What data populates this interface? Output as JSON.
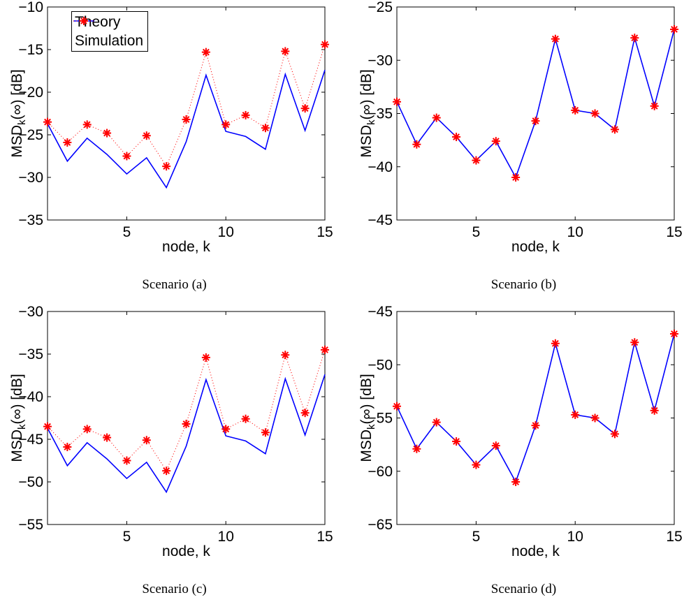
{
  "chart_data": [
    {
      "type": "line",
      "caption": "Scenario (a)",
      "xlabel": "node, k",
      "ylabel": "MSD_k(∞) [dB]",
      "xlim": [
        1,
        15
      ],
      "ylim": [
        -35,
        -10
      ],
      "xticks": [
        5,
        10,
        15
      ],
      "yticks": [
        -35,
        -30,
        -25,
        -20,
        -15,
        -10
      ],
      "ytick_labels": [
        "−35",
        "−30",
        "−25",
        "−20",
        "−15",
        "−10"
      ],
      "legend_position": "top-left",
      "grid": false,
      "series": [
        {
          "name": "Theory",
          "color": "#0000ff",
          "style": "solid",
          "marker": "none",
          "x": [
            1,
            2,
            3,
            4,
            5,
            6,
            7,
            8,
            9,
            10,
            11,
            12,
            13,
            14,
            15
          ],
          "values": [
            -23.7,
            -28.1,
            -25.4,
            -27.3,
            -29.6,
            -27.7,
            -31.2,
            -25.8,
            -18.0,
            -24.6,
            -25.2,
            -26.7,
            -17.9,
            -24.5,
            -17.4
          ]
        },
        {
          "name": "Simulation",
          "color": "#ff0000",
          "style": "dotted",
          "marker": "asterisk",
          "x": [
            1,
            2,
            3,
            4,
            5,
            6,
            7,
            8,
            9,
            10,
            11,
            12,
            13,
            14,
            15
          ],
          "values": [
            -23.5,
            -25.9,
            -23.8,
            -24.8,
            -27.5,
            -25.1,
            -28.7,
            -23.2,
            -15.3,
            -23.8,
            -22.7,
            -24.2,
            -15.2,
            -21.9,
            -14.4
          ]
        }
      ]
    },
    {
      "type": "line",
      "caption": "Scenario (b)",
      "xlabel": "node, k",
      "ylabel": "MSD_k(∞) [dB]",
      "xlim": [
        1,
        15
      ],
      "ylim": [
        -45,
        -25
      ],
      "xticks": [
        5,
        10,
        15
      ],
      "yticks": [
        -45,
        -40,
        -35,
        -30,
        -25
      ],
      "ytick_labels": [
        "−45",
        "−40",
        "−35",
        "−30",
        "−25"
      ],
      "grid": false,
      "series": [
        {
          "name": "Theory",
          "color": "#0000ff",
          "style": "solid",
          "marker": "none",
          "x": [
            1,
            2,
            3,
            4,
            5,
            6,
            7,
            8,
            9,
            10,
            11,
            12,
            13,
            14,
            15
          ],
          "values": [
            -33.9,
            -37.9,
            -35.4,
            -37.2,
            -39.4,
            -37.6,
            -41.0,
            -35.7,
            -28.0,
            -34.7,
            -35.0,
            -36.5,
            -27.9,
            -34.3,
            -27.1
          ]
        },
        {
          "name": "Simulation",
          "color": "#ff0000",
          "style": "none",
          "marker": "asterisk",
          "x": [
            1,
            2,
            3,
            4,
            5,
            6,
            7,
            8,
            9,
            10,
            11,
            12,
            13,
            14,
            15
          ],
          "values": [
            -33.9,
            -37.9,
            -35.4,
            -37.2,
            -39.4,
            -37.6,
            -41.0,
            -35.7,
            -28.0,
            -34.7,
            -35.0,
            -36.5,
            -27.9,
            -34.3,
            -27.1
          ]
        }
      ]
    },
    {
      "type": "line",
      "caption": "Scenario (c)",
      "xlabel": "node, k",
      "ylabel": "MSD_k(∞) [dB]",
      "xlim": [
        1,
        15
      ],
      "ylim": [
        -55,
        -30
      ],
      "xticks": [
        5,
        10,
        15
      ],
      "yticks": [
        -55,
        -50,
        -45,
        -40,
        -35,
        -30
      ],
      "ytick_labels": [
        "−55",
        "−50",
        "−45",
        "−40",
        "−35",
        "−30"
      ],
      "grid": false,
      "series": [
        {
          "name": "Theory",
          "color": "#0000ff",
          "style": "solid",
          "marker": "none",
          "x": [
            1,
            2,
            3,
            4,
            5,
            6,
            7,
            8,
            9,
            10,
            11,
            12,
            13,
            14,
            15
          ],
          "values": [
            -43.7,
            -48.1,
            -45.4,
            -47.3,
            -49.6,
            -47.7,
            -51.2,
            -45.8,
            -38.0,
            -44.6,
            -45.2,
            -46.7,
            -37.9,
            -44.5,
            -37.4
          ]
        },
        {
          "name": "Simulation",
          "color": "#ff0000",
          "style": "dotted",
          "marker": "asterisk",
          "x": [
            1,
            2,
            3,
            4,
            5,
            6,
            7,
            8,
            9,
            10,
            11,
            12,
            13,
            14,
            15
          ],
          "values": [
            -43.5,
            -45.9,
            -43.8,
            -44.8,
            -47.5,
            -45.1,
            -48.7,
            -43.2,
            -35.4,
            -43.8,
            -42.6,
            -44.2,
            -35.1,
            -41.9,
            -34.5
          ]
        }
      ]
    },
    {
      "type": "line",
      "caption": "Scenario (d)",
      "xlabel": "node, k",
      "ylabel": "MSD_k(∞) [dB]",
      "xlim": [
        1,
        15
      ],
      "ylim": [
        -65,
        -45
      ],
      "xticks": [
        5,
        10,
        15
      ],
      "yticks": [
        -65,
        -60,
        -55,
        -50,
        -45
      ],
      "ytick_labels": [
        "−65",
        "−60",
        "−55",
        "−50",
        "−45"
      ],
      "grid": false,
      "series": [
        {
          "name": "Theory",
          "color": "#0000ff",
          "style": "solid",
          "marker": "none",
          "x": [
            1,
            2,
            3,
            4,
            5,
            6,
            7,
            8,
            9,
            10,
            11,
            12,
            13,
            14,
            15
          ],
          "values": [
            -53.9,
            -57.9,
            -55.4,
            -57.2,
            -59.4,
            -57.6,
            -61.0,
            -55.7,
            -48.0,
            -54.7,
            -55.0,
            -56.5,
            -47.9,
            -54.3,
            -47.1
          ]
        },
        {
          "name": "Simulation",
          "color": "#ff0000",
          "style": "none",
          "marker": "asterisk",
          "x": [
            1,
            2,
            3,
            4,
            5,
            6,
            7,
            8,
            9,
            10,
            11,
            12,
            13,
            14,
            15
          ],
          "values": [
            -53.9,
            -57.9,
            -55.4,
            -57.2,
            -59.4,
            -57.6,
            -61.0,
            -55.7,
            -48.0,
            -54.7,
            -55.0,
            -56.5,
            -47.9,
            -54.3,
            -47.1
          ]
        }
      ]
    }
  ]
}
